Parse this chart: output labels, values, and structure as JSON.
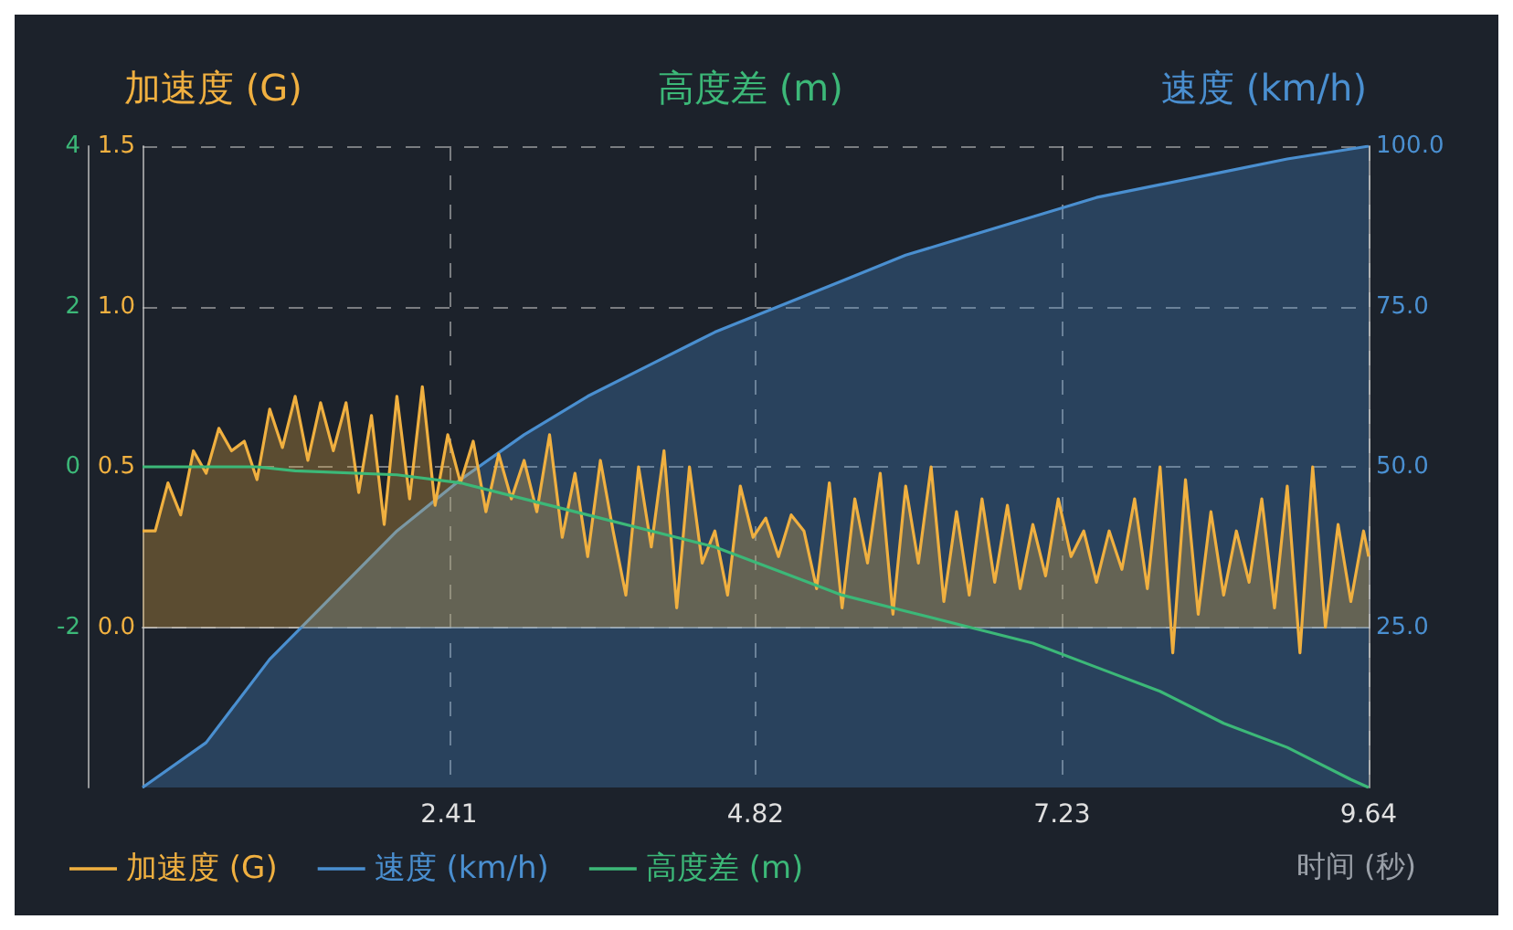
{
  "chart_data": {
    "type": "line",
    "ylabel": "加速度 (G)",
    "y2label": "速度 (km/h)",
    "y3label": "高度差 (m)",
    "xlabel": "时间 (秒)",
    "xlim": [
      0,
      9.64
    ],
    "xticks": [
      2.41,
      4.82,
      7.23,
      9.64
    ],
    "ylim": [
      -0.5,
      1.5
    ],
    "yticks": [
      {
        "value": 0,
        "label": "0.0"
      },
      {
        "value": 0.5,
        "label": "0.5"
      },
      {
        "value": 1,
        "label": "1.0"
      },
      {
        "value": 1.5,
        "label": "1.5"
      }
    ],
    "y2lim": [
      0,
      100
    ],
    "y2ticks": [
      {
        "value": 25,
        "label": "25.0"
      },
      {
        "value": 50,
        "label": "50.0"
      },
      {
        "value": 75,
        "label": "75.0"
      },
      {
        "value": 100,
        "label": "100.0"
      }
    ],
    "y3lim": [
      -4,
      4
    ],
    "y3ticks": [
      -2,
      0,
      2,
      4
    ],
    "grid": true,
    "legend": "bottom left",
    "series": [
      {
        "name": "加速度 (G)",
        "type": "area",
        "color": "#f0b040",
        "x": [
          0,
          0.1,
          0.2,
          0.3,
          0.4,
          0.5,
          0.6,
          0.7,
          0.8,
          0.9,
          1,
          1.1,
          1.2,
          1.3,
          1.4,
          1.5,
          1.6,
          1.7,
          1.8,
          1.9,
          2,
          2.1,
          2.2,
          2.3,
          2.4,
          2.5,
          2.6,
          2.7,
          2.8,
          2.9,
          3,
          3.1,
          3.2,
          3.3,
          3.4,
          3.5,
          3.6,
          3.7,
          3.8,
          3.9,
          4,
          4.1,
          4.2,
          4.3,
          4.4,
          4.5,
          4.6,
          4.7,
          4.8,
          4.9,
          5,
          5.1,
          5.2,
          5.3,
          5.4,
          5.5,
          5.6,
          5.7,
          5.8,
          5.9,
          6,
          6.1,
          6.2,
          6.3,
          6.4,
          6.5,
          6.6,
          6.7,
          6.8,
          6.9,
          7,
          7.1,
          7.2,
          7.3,
          7.4,
          7.5,
          7.6,
          7.7,
          7.8,
          7.9,
          8,
          8.1,
          8.2,
          8.3,
          8.4,
          8.5,
          8.6,
          8.7,
          8.8,
          8.9,
          9,
          9.1,
          9.2,
          9.3,
          9.4,
          9.5,
          9.6,
          9.64
        ],
        "values": [
          0.3,
          0.3,
          0.45,
          0.35,
          0.55,
          0.48,
          0.62,
          0.55,
          0.58,
          0.46,
          0.68,
          0.56,
          0.72,
          0.52,
          0.7,
          0.55,
          0.7,
          0.42,
          0.66,
          0.32,
          0.72,
          0.4,
          0.75,
          0.38,
          0.6,
          0.45,
          0.58,
          0.36,
          0.54,
          0.4,
          0.52,
          0.36,
          0.6,
          0.28,
          0.48,
          0.22,
          0.52,
          0.3,
          0.1,
          0.5,
          0.25,
          0.55,
          0.06,
          0.5,
          0.2,
          0.3,
          0.1,
          0.44,
          0.28,
          0.34,
          0.22,
          0.35,
          0.3,
          0.12,
          0.45,
          0.06,
          0.4,
          0.2,
          0.48,
          0.04,
          0.44,
          0.2,
          0.5,
          0.08,
          0.36,
          0.1,
          0.4,
          0.14,
          0.38,
          0.12,
          0.32,
          0.16,
          0.4,
          0.22,
          0.3,
          0.14,
          0.3,
          0.18,
          0.4,
          0.12,
          0.5,
          -0.08,
          0.46,
          0.04,
          0.36,
          0.1,
          0.3,
          0.14,
          0.4,
          0.06,
          0.44,
          -0.08,
          0.5,
          0,
          0.32,
          0.08,
          0.3,
          0.22
        ]
      },
      {
        "name": "速度 (km/h)",
        "type": "area",
        "axis": "y2",
        "color": "#4a8fd0",
        "x": [
          0,
          0.5,
          1,
          1.5,
          2,
          2.5,
          3,
          3.5,
          4,
          4.5,
          5,
          5.5,
          6,
          6.5,
          7,
          7.5,
          8,
          8.5,
          9,
          9.64
        ],
        "values": [
          0,
          7,
          20,
          30,
          40,
          48,
          55,
          61,
          66,
          71,
          75,
          79,
          83,
          86,
          89,
          92,
          94,
          96,
          98,
          100
        ]
      },
      {
        "name": "高度差 (m)",
        "axis": "y3",
        "color": "#3cb878",
        "x": [
          0,
          0.9,
          1.2,
          2,
          2.5,
          3,
          3.5,
          4,
          4.5,
          5,
          5.5,
          6,
          6.5,
          7,
          7.5,
          8,
          8.5,
          9,
          9.5,
          9.64
        ],
        "values": [
          0,
          0,
          -0.05,
          -0.1,
          -0.2,
          -0.4,
          -0.6,
          -0.8,
          -1,
          -1.3,
          -1.6,
          -1.8,
          -2,
          -2.2,
          -2.5,
          -2.8,
          -3.2,
          -3.5,
          -3.9,
          -4
        ]
      }
    ]
  }
}
